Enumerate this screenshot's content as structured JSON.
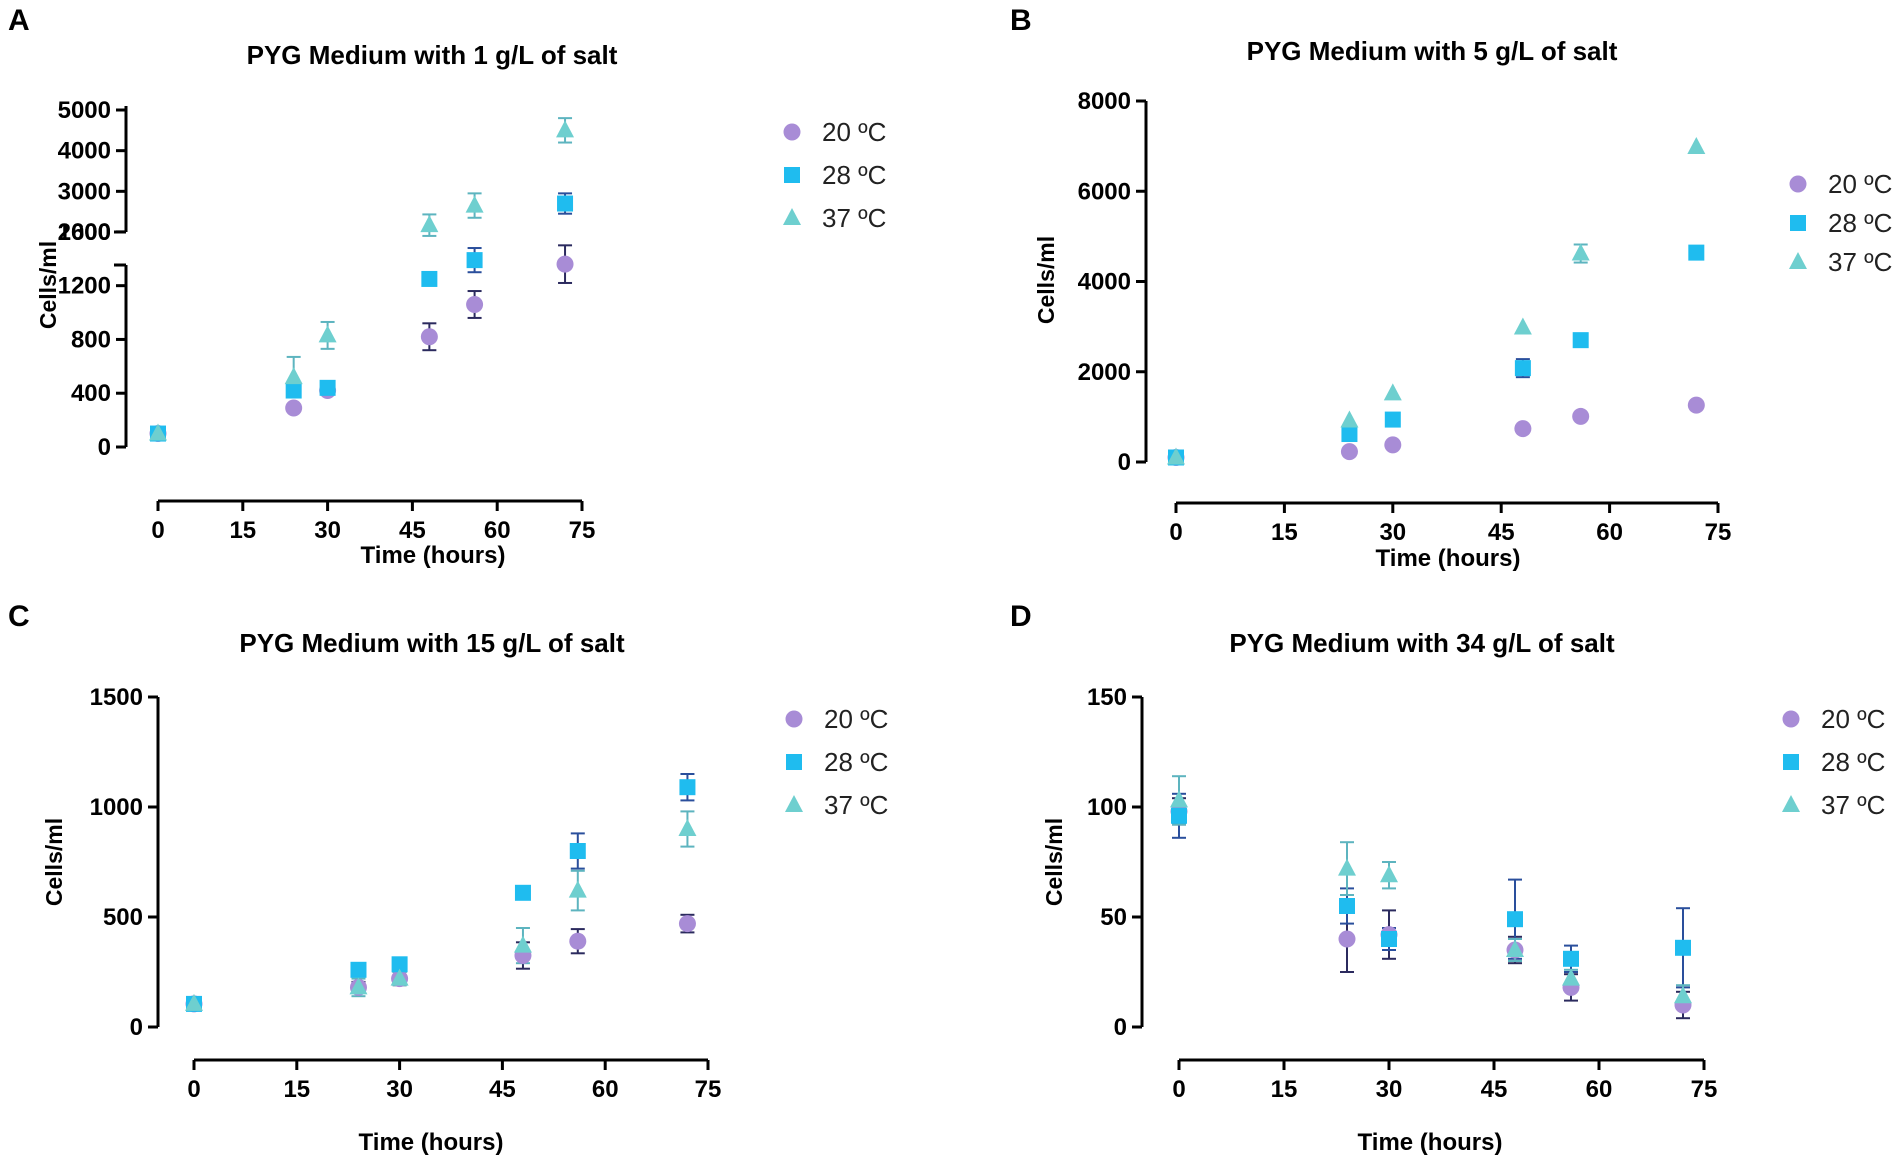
{
  "colors": {
    "20": "#a88cd6",
    "28": "#1fbcef",
    "37": "#6ecfcf",
    "err_20": "#2b2a5e",
    "err_28": "#2a4f9c",
    "err_37": "#5db4bf"
  },
  "legend_labels": [
    "20 ºC",
    "28 ºC",
    "37 ºC"
  ],
  "chart_data": [
    {
      "panel": "A",
      "type": "scatter",
      "title": "PYG Medium with 1 g/L of salt",
      "xlabel": "Time (hours)",
      "ylabel": "Cells/ml",
      "xlim": [
        0,
        75
      ],
      "xticks": [
        0,
        15,
        30,
        45,
        60,
        75
      ],
      "y_axis_break": true,
      "ylim_lower": [
        0,
        1800
      ],
      "ylim_upper": [
        2000,
        5000
      ],
      "yticks_lower": [
        0,
        400,
        800,
        1200,
        1600
      ],
      "yticks_upper": [
        2000,
        3000,
        4000,
        5000
      ],
      "legend_position": "top-right",
      "series": [
        {
          "name": "20 ºC",
          "marker": "circle",
          "x": [
            0,
            24,
            30,
            48,
            56,
            72
          ],
          "y": [
            100,
            290,
            420,
            820,
            1060,
            1360
          ],
          "err": [
            0,
            0,
            0,
            100,
            100,
            140
          ]
        },
        {
          "name": "28 ºC",
          "marker": "square",
          "x": [
            0,
            24,
            30,
            48,
            56,
            72
          ],
          "y": [
            100,
            420,
            440,
            1250,
            1390,
            2700
          ],
          "err": [
            0,
            0,
            0,
            0,
            90,
            250
          ]
        },
        {
          "name": "37 ºC",
          "marker": "triangle",
          "x": [
            0,
            24,
            30,
            48,
            56,
            72
          ],
          "y": [
            100,
            520,
            830,
            1650,
            2650,
            4500
          ],
          "err": [
            0,
            150,
            100,
            80,
            300,
            300
          ]
        }
      ]
    },
    {
      "panel": "B",
      "type": "scatter",
      "title": "PYG Medium with 5 g/L of salt",
      "xlabel": "Time (hours)",
      "ylabel": "Cells/ml",
      "xlim": [
        0,
        75
      ],
      "xticks": [
        0,
        15,
        30,
        45,
        60,
        75
      ],
      "ylim": [
        0,
        8000
      ],
      "yticks": [
        0,
        2000,
        4000,
        6000,
        8000
      ],
      "legend_position": "right",
      "series": [
        {
          "name": "20 ºC",
          "marker": "circle",
          "x": [
            0,
            24,
            30,
            48,
            56,
            72
          ],
          "y": [
            100,
            230,
            380,
            740,
            1010,
            1260
          ],
          "err": [
            0,
            0,
            0,
            0,
            0,
            0
          ]
        },
        {
          "name": "28 ºC",
          "marker": "square",
          "x": [
            0,
            24,
            30,
            48,
            56,
            72
          ],
          "y": [
            100,
            620,
            940,
            2080,
            2700,
            4640
          ],
          "err": [
            0,
            0,
            0,
            200,
            0,
            0
          ]
        },
        {
          "name": "37 ºC",
          "marker": "triangle",
          "x": [
            0,
            24,
            30,
            48,
            56,
            72
          ],
          "y": [
            100,
            920,
            1520,
            2980,
            4620,
            6980
          ],
          "err": [
            0,
            0,
            0,
            0,
            200,
            0
          ]
        }
      ]
    },
    {
      "panel": "C",
      "type": "scatter",
      "title": "PYG Medium with 15 g/L of salt",
      "xlabel": "Time (hours)",
      "ylabel": "Cells/ml",
      "xlim": [
        0,
        75
      ],
      "xticks": [
        0,
        15,
        30,
        45,
        60,
        75
      ],
      "ylim": [
        0,
        1500
      ],
      "yticks": [
        0,
        500,
        1000,
        1500
      ],
      "legend_position": "top-right",
      "series": [
        {
          "name": "20 ºC",
          "marker": "circle",
          "x": [
            0,
            24,
            30,
            48,
            56,
            72
          ],
          "y": [
            105,
            180,
            220,
            325,
            390,
            470
          ],
          "err": [
            0,
            25,
            30,
            60,
            55,
            40
          ]
        },
        {
          "name": "28 ºC",
          "marker": "square",
          "x": [
            0,
            24,
            30,
            48,
            56,
            72
          ],
          "y": [
            105,
            260,
            285,
            610,
            800,
            1090
          ],
          "err": [
            0,
            0,
            0,
            0,
            80,
            60
          ]
        },
        {
          "name": "37 ºC",
          "marker": "triangle",
          "x": [
            0,
            24,
            30,
            48,
            56,
            72
          ],
          "y": [
            105,
            180,
            220,
            370,
            620,
            900
          ],
          "err": [
            0,
            40,
            30,
            80,
            90,
            80
          ]
        }
      ]
    },
    {
      "panel": "D",
      "type": "scatter",
      "title": "PYG Medium with 34 g/L of salt",
      "xlabel": "Time (hours)",
      "ylabel": "Cells/ml",
      "xlim": [
        0,
        75
      ],
      "xticks": [
        0,
        15,
        30,
        45,
        60,
        75
      ],
      "ylim": [
        0,
        150
      ],
      "yticks": [
        0,
        50,
        100,
        150
      ],
      "legend_position": "top-right",
      "series": [
        {
          "name": "20 ºC",
          "marker": "circle",
          "x": [
            0,
            24,
            30,
            48,
            56,
            72
          ],
          "y": [
            98,
            40,
            42,
            35,
            18,
            10
          ],
          "err": [
            6,
            15,
            11,
            6,
            6,
            6
          ]
        },
        {
          "name": "28 ºC",
          "marker": "square",
          "x": [
            0,
            24,
            30,
            48,
            56,
            72
          ],
          "y": [
            96,
            55,
            40,
            49,
            31,
            36
          ],
          "err": [
            10,
            8,
            5,
            18,
            6,
            18
          ]
        },
        {
          "name": "37 ºC",
          "marker": "triangle",
          "x": [
            0,
            24,
            30,
            48,
            56,
            72
          ],
          "y": [
            103,
            72,
            69,
            35,
            22,
            14
          ],
          "err": [
            11,
            12,
            6,
            5,
            4,
            5
          ]
        }
      ]
    }
  ]
}
